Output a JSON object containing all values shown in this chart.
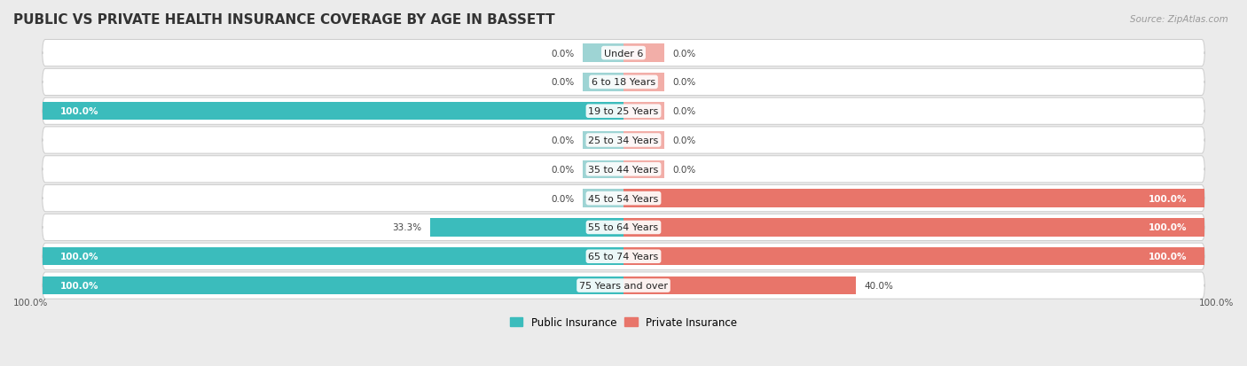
{
  "title": "PUBLIC VS PRIVATE HEALTH INSURANCE COVERAGE BY AGE IN BASSETT",
  "source": "Source: ZipAtlas.com",
  "categories": [
    "Under 6",
    "6 to 18 Years",
    "19 to 25 Years",
    "25 to 34 Years",
    "35 to 44 Years",
    "45 to 54 Years",
    "55 to 64 Years",
    "65 to 74 Years",
    "75 Years and over"
  ],
  "public_values": [
    0.0,
    0.0,
    100.0,
    0.0,
    0.0,
    0.0,
    33.3,
    100.0,
    100.0
  ],
  "private_values": [
    0.0,
    0.0,
    0.0,
    0.0,
    0.0,
    100.0,
    100.0,
    100.0,
    40.0
  ],
  "public_color": "#3BBCBC",
  "private_color": "#E8756A",
  "public_color_light": "#9ED4D4",
  "private_color_light": "#F2AEA8",
  "background_color": "#EBEBEB",
  "row_bg_color": "#FAFAFA",
  "title_fontsize": 11,
  "bar_height": 0.62,
  "stub_size": 7.0,
  "axis_label_left": "100.0%",
  "axis_label_right": "100.0%"
}
